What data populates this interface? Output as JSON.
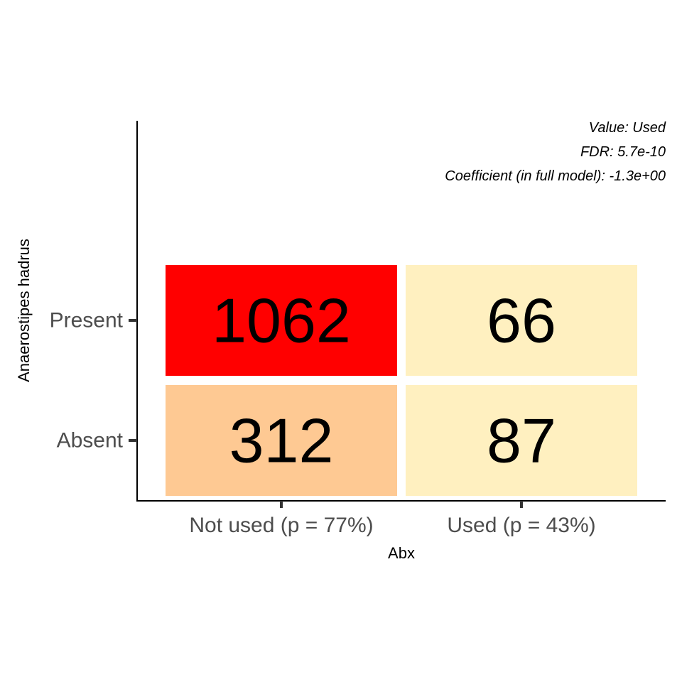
{
  "chart_data": {
    "type": "heatmap",
    "xlabel": "Abx",
    "ylabel": "Anaerostipes hadrus",
    "x_categories": [
      "Not used (p = 77%)",
      "Used (p = 43%)"
    ],
    "y_categories": [
      "Present",
      "Absent"
    ],
    "cells": [
      {
        "x": "Not used (p = 77%)",
        "y": "Present",
        "value": 1062,
        "label": "1062",
        "color": "#ff0000"
      },
      {
        "x": "Used (p = 43%)",
        "y": "Present",
        "value": 66,
        "label": "66",
        "color": "#fff0c0"
      },
      {
        "x": "Not used (p = 77%)",
        "y": "Absent",
        "value": 312,
        "label": "312",
        "color": "#fec993"
      },
      {
        "x": "Used (p = 43%)",
        "y": "Absent",
        "value": 87,
        "label": "87",
        "color": "#fff0c0"
      }
    ],
    "annotations": [
      "Value: Used",
      "FDR: 5.7e-10",
      "Coefficient (in full model): -1.3e+00"
    ],
    "grid": false,
    "legend": "none"
  }
}
